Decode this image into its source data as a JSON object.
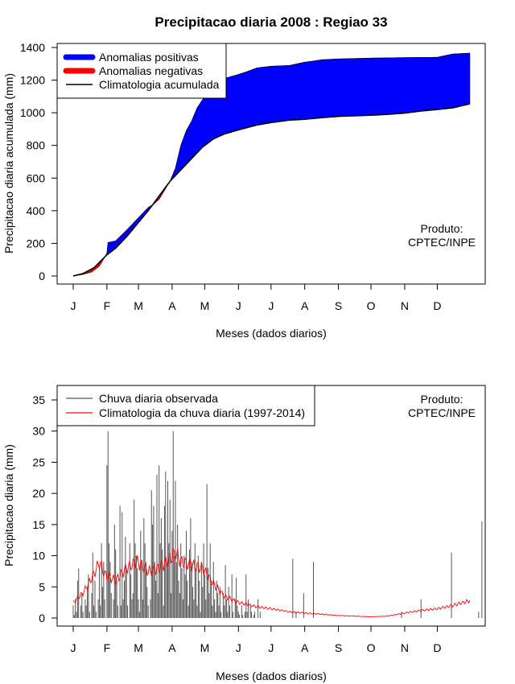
{
  "title": "Precipitacao diaria 2008 : Regiao 33",
  "chart_data": [
    {
      "type": "area",
      "ylabel": "Precipitacao diaria acumulada (mm)",
      "xlabel": "Meses (dados diarios)",
      "ylim": [
        0,
        1400
      ],
      "yticks": [
        0,
        200,
        400,
        600,
        800,
        1000,
        1200,
        1400
      ],
      "months": [
        "J",
        "F",
        "M",
        "A",
        "M",
        "J",
        "J",
        "A",
        "S",
        "O",
        "N",
        "D"
      ],
      "month_start_days": [
        1,
        32,
        61,
        92,
        122,
        153,
        183,
        214,
        245,
        275,
        306,
        336
      ],
      "xlim": [
        1,
        366
      ],
      "legend": {
        "positive": "Anomalias positivas",
        "negative": "Anomalias negativas",
        "climatology": "Climatologia acumulada"
      },
      "colors": {
        "positive": "#0000ff",
        "negative": "#ff0000",
        "line": "#000000"
      },
      "annotation": [
        "Produto:",
        "CPTEC/INPE"
      ],
      "climatology_cumulative": [
        [
          1,
          0
        ],
        [
          10,
          15
        ],
        [
          20,
          50
        ],
        [
          32,
          130
        ],
        [
          40,
          170
        ],
        [
          50,
          240
        ],
        [
          60,
          320
        ],
        [
          70,
          400
        ],
        [
          80,
          490
        ],
        [
          90,
          580
        ],
        [
          100,
          650
        ],
        [
          110,
          720
        ],
        [
          120,
          790
        ],
        [
          130,
          840
        ],
        [
          140,
          870
        ],
        [
          153,
          895
        ],
        [
          170,
          925
        ],
        [
          183,
          940
        ],
        [
          200,
          955
        ],
        [
          214,
          960
        ],
        [
          230,
          970
        ],
        [
          245,
          978
        ],
        [
          275,
          985
        ],
        [
          290,
          990
        ],
        [
          306,
          998
        ],
        [
          320,
          1010
        ],
        [
          336,
          1020
        ],
        [
          350,
          1030
        ],
        [
          366,
          1055
        ]
      ],
      "observed_cumulative": [
        [
          1,
          0
        ],
        [
          10,
          10
        ],
        [
          18,
          25
        ],
        [
          25,
          60
        ],
        [
          32,
          140
        ],
        [
          33,
          205
        ],
        [
          40,
          215
        ],
        [
          50,
          280
        ],
        [
          60,
          350
        ],
        [
          70,
          420
        ],
        [
          75,
          440
        ],
        [
          80,
          470
        ],
        [
          90,
          580
        ],
        [
          95,
          660
        ],
        [
          100,
          800
        ],
        [
          105,
          890
        ],
        [
          110,
          950
        ],
        [
          115,
          1030
        ],
        [
          120,
          1080
        ],
        [
          125,
          1130
        ],
        [
          130,
          1180
        ],
        [
          140,
          1210
        ],
        [
          153,
          1235
        ],
        [
          160,
          1250
        ],
        [
          170,
          1275
        ],
        [
          183,
          1285
        ],
        [
          200,
          1290
        ],
        [
          214,
          1310
        ],
        [
          220,
          1315
        ],
        [
          230,
          1325
        ],
        [
          245,
          1330
        ],
        [
          275,
          1335
        ],
        [
          306,
          1338
        ],
        [
          336,
          1340
        ],
        [
          350,
          1360
        ],
        [
          366,
          1365
        ]
      ]
    },
    {
      "type": "bar",
      "ylabel": "Precipitacao diaria (mm)",
      "xlabel": "Meses (dados diarios)",
      "ylim": [
        0,
        35
      ],
      "yticks": [
        0,
        5,
        10,
        15,
        20,
        25,
        30,
        35
      ],
      "months": [
        "J",
        "F",
        "M",
        "A",
        "M",
        "J",
        "J",
        "A",
        "S",
        "O",
        "N",
        "D"
      ],
      "month_start_days": [
        1,
        32,
        61,
        92,
        122,
        153,
        183,
        214,
        245,
        275,
        306,
        336
      ],
      "xlim": [
        1,
        366
      ],
      "legend": {
        "observed": "Chuva diaria observada",
        "climatology": "Climatologia da chuva diaria (1997-2014)"
      },
      "colors": {
        "observed": "#555555",
        "climatology": "#ff0000"
      },
      "annotation": [
        "Produto:",
        "CPTEC/INPE"
      ],
      "observed_daily": [
        2,
        0.5,
        3,
        1,
        6,
        8,
        0,
        2,
        4,
        1,
        0,
        3,
        2,
        5,
        7,
        1,
        0,
        4,
        10.5,
        2,
        6,
        1,
        0,
        3,
        8,
        2,
        12,
        5,
        9,
        3,
        0,
        24.5,
        30,
        12,
        9,
        4,
        0,
        3,
        15,
        11,
        6,
        2,
        0,
        18,
        2,
        17,
        3,
        6,
        13,
        8,
        2,
        0,
        12,
        7,
        3,
        4,
        19,
        12,
        10,
        8,
        3,
        1,
        14,
        9,
        3,
        16,
        12,
        9,
        5,
        2,
        0,
        3,
        20.5,
        15,
        18,
        9,
        6,
        23,
        4,
        24.5,
        12,
        16,
        11,
        2,
        18,
        23.5,
        9,
        22,
        12,
        19,
        4,
        14,
        30,
        10,
        22,
        9,
        15,
        6,
        4,
        12,
        8,
        3,
        10,
        7,
        14,
        6,
        2,
        11,
        16,
        9,
        5,
        3,
        12,
        8,
        2,
        10,
        6,
        1,
        9,
        5,
        12,
        7,
        3,
        21.5,
        8,
        4,
        12,
        6,
        2,
        9,
        3,
        1,
        6,
        4,
        2,
        5,
        1,
        0,
        4,
        2,
        8.5,
        3,
        1,
        5,
        2,
        0,
        7,
        1,
        0,
        3,
        6.5,
        2,
        1,
        0.5,
        0,
        2,
        0.5,
        0,
        1,
        7,
        1,
        3,
        0,
        2,
        1,
        0,
        0.5,
        1,
        0,
        0,
        3,
        0,
        1,
        0,
        0,
        0,
        0,
        0,
        0,
        0,
        0,
        0,
        0,
        0,
        0,
        0,
        0,
        0,
        0,
        0,
        0,
        0,
        0,
        0,
        0,
        0,
        0,
        0,
        0,
        0,
        0,
        0,
        9.5,
        0,
        0,
        1,
        0,
        0,
        0,
        0,
        0,
        0,
        4,
        0,
        0,
        0,
        0,
        0,
        0,
        0,
        0,
        9,
        0,
        0,
        0,
        0,
        0,
        0,
        0,
        0,
        0,
        0,
        0,
        0,
        0,
        0,
        0,
        0,
        0,
        0,
        0,
        0,
        0,
        0,
        0,
        0,
        0,
        0,
        0,
        0,
        0,
        0,
        0,
        0,
        0,
        0,
        0,
        0,
        0,
        0,
        0,
        0,
        0,
        0,
        0,
        0,
        0,
        0,
        0,
        0,
        0,
        0,
        0,
        0,
        0,
        0,
        0,
        0,
        0,
        0,
        0,
        0,
        0,
        0,
        0,
        0,
        0,
        0,
        0,
        0,
        0,
        0,
        0,
        0,
        0,
        0,
        0,
        0,
        0,
        0,
        0,
        0,
        1,
        0,
        0,
        0,
        0,
        0,
        0,
        0,
        0,
        0,
        0,
        0,
        0,
        0,
        0,
        0,
        0,
        0,
        3,
        0,
        0,
        0,
        0,
        0,
        0,
        0,
        0,
        0,
        0,
        0,
        0,
        0,
        0,
        0,
        0,
        0,
        0,
        0,
        0,
        0,
        0,
        0,
        0,
        0,
        0,
        0,
        10.5,
        0,
        0,
        0,
        0,
        0,
        0,
        0,
        0,
        0,
        0,
        0,
        0,
        0,
        0,
        0,
        0,
        0,
        0,
        0,
        0,
        0,
        0,
        0,
        0,
        1,
        0,
        0,
        15.5,
        0,
        0,
        0,
        0,
        0,
        0,
        0,
        0,
        0,
        0
      ],
      "climatology_daily_anchors": [
        [
          1,
          2.5
        ],
        [
          10,
          4
        ],
        [
          20,
          7
        ],
        [
          25,
          9
        ],
        [
          30,
          7
        ],
        [
          40,
          6
        ],
        [
          50,
          8
        ],
        [
          60,
          9
        ],
        [
          70,
          7.5
        ],
        [
          80,
          8
        ],
        [
          90,
          9.5
        ],
        [
          95,
          10.5
        ],
        [
          100,
          9
        ],
        [
          110,
          8.5
        ],
        [
          120,
          8
        ],
        [
          130,
          5.5
        ],
        [
          140,
          3.5
        ],
        [
          153,
          2.5
        ],
        [
          170,
          1.8
        ],
        [
          183,
          1.5
        ],
        [
          200,
          1
        ],
        [
          214,
          0.8
        ],
        [
          230,
          0.6
        ],
        [
          245,
          0.4
        ],
        [
          260,
          0.3
        ],
        [
          275,
          0.2
        ],
        [
          290,
          0.3
        ],
        [
          306,
          0.8
        ],
        [
          320,
          1.2
        ],
        [
          336,
          1.5
        ],
        [
          350,
          2
        ],
        [
          360,
          2.5
        ],
        [
          366,
          2.8
        ]
      ]
    }
  ]
}
